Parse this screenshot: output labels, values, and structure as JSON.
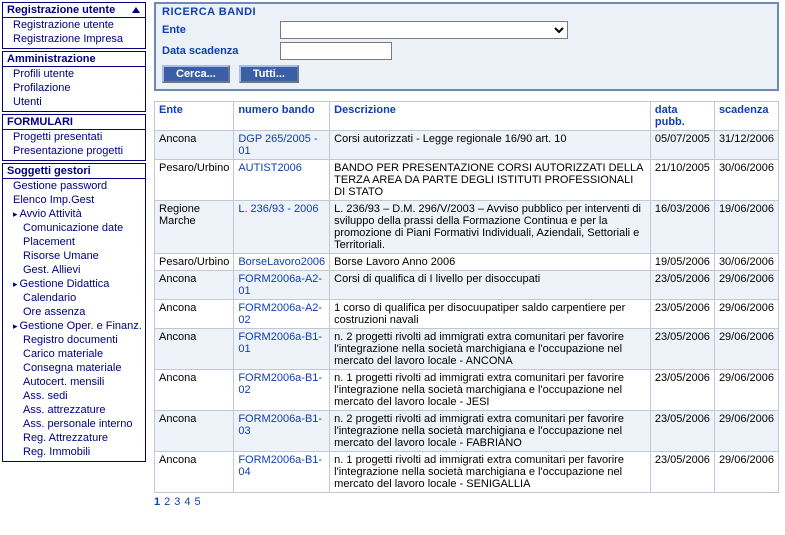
{
  "sidebar": {
    "groups": [
      {
        "head": "Registrazione utente",
        "arrow": true,
        "items": [
          {
            "label": "Registrazione utente",
            "cls": ""
          },
          {
            "label": "Registrazione Impresa",
            "cls": ""
          }
        ]
      },
      {
        "head": "Amministrazione",
        "arrow": false,
        "items": [
          {
            "label": "Profili utente",
            "cls": ""
          },
          {
            "label": "Profilazione",
            "cls": ""
          },
          {
            "label": "Utenti",
            "cls": ""
          }
        ]
      },
      {
        "head": "FORMULARI",
        "arrow": false,
        "items": [
          {
            "label": "Progetti presentati",
            "cls": ""
          },
          {
            "label": "Presentazione progetti",
            "cls": ""
          }
        ]
      },
      {
        "head": "Soggetti gestori",
        "arrow": false,
        "items": [
          {
            "label": "Gestione password",
            "cls": ""
          },
          {
            "label": "Elenco Imp.Gest",
            "cls": ""
          },
          {
            "label": "Avvio Attività",
            "cls": "tri"
          },
          {
            "label": "Comunicazione date",
            "cls": "sub"
          },
          {
            "label": "Placement",
            "cls": "sub"
          },
          {
            "label": "Risorse Umane",
            "cls": "sub"
          },
          {
            "label": "Gest. Allievi",
            "cls": "sub"
          },
          {
            "label": "Gestione Didattica",
            "cls": "tri"
          },
          {
            "label": "Calendario",
            "cls": "sub"
          },
          {
            "label": "Ore assenza",
            "cls": "sub"
          },
          {
            "label": "Gestione Oper. e Finanz.",
            "cls": "tri"
          },
          {
            "label": "Registro documenti",
            "cls": "sub"
          },
          {
            "label": "Carico materiale",
            "cls": "sub"
          },
          {
            "label": "Consegna materiale",
            "cls": "sub"
          },
          {
            "label": "Autocert. mensili",
            "cls": "sub"
          },
          {
            "label": "Ass. sedi",
            "cls": "sub"
          },
          {
            "label": "Ass. attrezzature",
            "cls": "sub"
          },
          {
            "label": "Ass. personale interno",
            "cls": "sub"
          },
          {
            "label": "Reg. Attrezzature",
            "cls": "sub"
          },
          {
            "label": "Reg. Immobili",
            "cls": "sub"
          }
        ]
      }
    ]
  },
  "search": {
    "title": "RICERCA BANDI",
    "ente_label": "Ente",
    "scad_label": "Data scadenza",
    "cerca_label": "Cerca...",
    "tutti_label": "Tutti..."
  },
  "table": {
    "headers": {
      "ente": "Ente",
      "numero": "numero bando",
      "descr": "Descrizione",
      "datap": "data pubb.",
      "scad": "scadenza"
    },
    "rows": [
      {
        "ente": "Ancona",
        "num": "DGP 265/2005 - 01",
        "desc": "Corsi autorizzati - Legge regionale 16/90 art. 10",
        "dp": "05/07/2005",
        "sc": "31/12/2006"
      },
      {
        "ente": "Pesaro/Urbino",
        "num": "AUTIST2006",
        "desc": "BANDO PER PRESENTAZIONE CORSI AUTORIZZATI DELLA TERZA AREA DA PARTE DEGLI ISTITUTI PROFESSIONALI DI STATO",
        "dp": "21/10/2005",
        "sc": "30/06/2006"
      },
      {
        "ente": "Regione Marche",
        "num": "L. 236/93 - 2006",
        "desc": "L. 236/93 – D.M. 296/V/2003 – Avviso pubblico per interventi di sviluppo della prassi della Formazione Continua e per la promozione di Piani Formativi Individuali, Aziendali, Settoriali e Territoriali.",
        "dp": "16/03/2006",
        "sc": "19/06/2006"
      },
      {
        "ente": "Pesaro/Urbino",
        "num": "BorseLavoro2006",
        "desc": "Borse Lavoro Anno 2006",
        "dp": "19/05/2006",
        "sc": "30/06/2006"
      },
      {
        "ente": "Ancona",
        "num": "FORM2006a-A2-01",
        "desc": "Corsi di qualifica di I livello per disoccupati",
        "dp": "23/05/2006",
        "sc": "29/06/2006"
      },
      {
        "ente": "Ancona",
        "num": "FORM2006a-A2-02",
        "desc": "1 corso di qualifica per disocuupatiper saldo carpentiere per costruzioni navali",
        "dp": "23/05/2006",
        "sc": "29/06/2006"
      },
      {
        "ente": "Ancona",
        "num": "FORM2006a-B1-01",
        "desc": "n. 2 progetti rivolti ad immigrati extra comunitari per favorire l'integrazione nella società marchigiana e l'occupazione nel mercato del lavoro locale - ANCONA",
        "dp": "23/05/2006",
        "sc": "29/06/2006"
      },
      {
        "ente": "Ancona",
        "num": "FORM2006a-B1-02",
        "desc": "n. 1 progetti rivolti ad immigrati extra comunitari per favorire l'integrazione nella società marchigiana e l'occupazione nel mercato del lavoro locale - JESI",
        "dp": "23/05/2006",
        "sc": "29/06/2006"
      },
      {
        "ente": "Ancona",
        "num": "FORM2006a-B1-03",
        "desc": "n. 2 progetti rivolti ad immigrati extra comunitari per favorire l'integrazione nella società marchigiana e l'occupazione nel mercato del lavoro locale - FABRIANO",
        "dp": "23/05/2006",
        "sc": "29/06/2006"
      },
      {
        "ente": "Ancona",
        "num": "FORM2006a-B1-04",
        "desc": "n. 1 progetti rivolti ad immigrati extra comunitari per favorire l'integrazione nella società marchigiana e l'occupazione nel mercato del lavoro locale - SENIGALLIA",
        "dp": "23/05/2006",
        "sc": "29/06/2006"
      }
    ]
  },
  "paging": [
    "1",
    "2",
    "3",
    "4",
    "5"
  ]
}
